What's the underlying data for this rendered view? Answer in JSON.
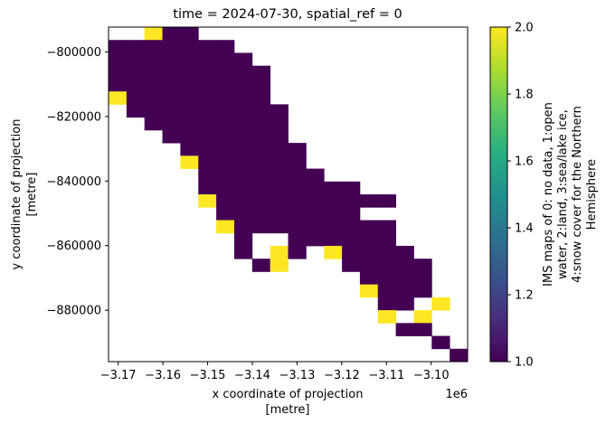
{
  "chart_data": {
    "type": "heatmap",
    "title": "time = 2024-07-30, spatial_ref = 0",
    "xlabel": [
      "x coordinate of projection",
      "[metre]"
    ],
    "ylabel": [
      "y coordinate of projection",
      "[metre]"
    ],
    "x_offset_label": "1e6",
    "xlim": [
      -3172157,
      -3091857
    ],
    "ylim": [
      -895915,
      -792337
    ],
    "x_ticks": [
      -3.17,
      -3.16,
      -3.15,
      -3.14,
      -3.13,
      -3.12,
      -3.11,
      -3.1
    ],
    "x_tick_labels": [
      "−3.17",
      "−3.16",
      "−3.15",
      "−3.14",
      "−3.13",
      "−3.12",
      "−3.11",
      "−3.10"
    ],
    "y_ticks": [
      -800000,
      -820000,
      -840000,
      -860000,
      -880000
    ],
    "y_tick_labels": [
      "−800000",
      "−820000",
      "−840000",
      "−860000",
      "−880000"
    ],
    "x": [
      -3170150,
      -3166135,
      -3162120,
      -3158105,
      -3154090,
      -3150075,
      -3146060,
      -3142045,
      -3138030,
      -3134015,
      -3130000,
      -3125985,
      -3121970,
      -3117955,
      -3113940,
      -3109925,
      -3105910,
      -3101895,
      -3097880,
      -3093865
    ],
    "y": [
      -794330,
      -798314,
      -802298,
      -806282,
      -810266,
      -814250,
      -818234,
      -822218,
      -826202,
      -830186,
      -834170,
      -838154,
      -842138,
      -846122,
      -850106,
      -854090,
      -858074,
      -862058,
      -866042,
      -870026,
      -874010,
      -877994,
      -881978,
      -885962,
      -889946,
      -893930
    ],
    "values": [
      [
        null,
        null,
        2,
        1,
        1,
        null,
        null,
        null,
        null,
        null,
        null,
        null,
        null,
        null,
        null,
        null,
        null,
        null,
        null,
        null
      ],
      [
        1,
        1,
        1,
        1,
        1,
        1,
        1,
        null,
        null,
        null,
        null,
        null,
        null,
        null,
        null,
        null,
        null,
        null,
        null,
        null
      ],
      [
        1,
        1,
        1,
        1,
        1,
        1,
        1,
        1,
        null,
        null,
        null,
        null,
        null,
        null,
        null,
        null,
        null,
        null,
        null,
        null
      ],
      [
        1,
        1,
        1,
        1,
        1,
        1,
        1,
        1,
        1,
        null,
        null,
        null,
        null,
        null,
        null,
        null,
        null,
        null,
        null,
        null
      ],
      [
        1,
        1,
        1,
        1,
        1,
        1,
        1,
        1,
        1,
        null,
        null,
        null,
        null,
        null,
        null,
        null,
        null,
        null,
        null,
        null
      ],
      [
        2,
        1,
        1,
        1,
        1,
        1,
        1,
        1,
        1,
        null,
        null,
        null,
        null,
        null,
        null,
        null,
        null,
        null,
        null,
        null
      ],
      [
        null,
        1,
        1,
        1,
        1,
        1,
        1,
        1,
        1,
        1,
        null,
        null,
        null,
        null,
        null,
        null,
        null,
        null,
        null,
        null
      ],
      [
        null,
        null,
        1,
        1,
        1,
        1,
        1,
        1,
        1,
        1,
        null,
        null,
        null,
        null,
        null,
        null,
        null,
        null,
        null,
        null
      ],
      [
        null,
        null,
        null,
        1,
        1,
        1,
        1,
        1,
        1,
        1,
        null,
        null,
        null,
        null,
        null,
        null,
        null,
        null,
        null,
        null
      ],
      [
        null,
        null,
        null,
        null,
        1,
        1,
        1,
        1,
        1,
        1,
        1,
        null,
        null,
        null,
        null,
        null,
        null,
        null,
        null,
        null
      ],
      [
        null,
        null,
        null,
        null,
        2,
        1,
        1,
        1,
        1,
        1,
        1,
        null,
        null,
        null,
        null,
        null,
        null,
        null,
        null,
        null
      ],
      [
        null,
        null,
        null,
        null,
        null,
        1,
        1,
        1,
        1,
        1,
        1,
        1,
        null,
        null,
        null,
        null,
        null,
        null,
        null,
        null
      ],
      [
        null,
        null,
        null,
        null,
        null,
        1,
        1,
        1,
        1,
        1,
        1,
        1,
        1,
        1,
        null,
        null,
        null,
        null,
        null,
        null
      ],
      [
        null,
        null,
        null,
        null,
        null,
        2,
        1,
        1,
        1,
        1,
        1,
        1,
        1,
        1,
        1,
        1,
        null,
        null,
        null,
        null
      ],
      [
        null,
        null,
        null,
        null,
        null,
        null,
        1,
        1,
        1,
        1,
        1,
        1,
        1,
        1,
        null,
        null,
        null,
        null,
        null,
        null
      ],
      [
        null,
        null,
        null,
        null,
        null,
        null,
        2,
        1,
        1,
        1,
        1,
        1,
        1,
        1,
        1,
        1,
        null,
        null,
        null,
        null
      ],
      [
        null,
        null,
        null,
        null,
        null,
        null,
        null,
        1,
        null,
        null,
        1,
        1,
        1,
        1,
        1,
        1,
        null,
        null,
        null,
        null
      ],
      [
        null,
        null,
        null,
        null,
        null,
        null,
        null,
        1,
        null,
        2,
        1,
        null,
        2,
        1,
        1,
        1,
        1,
        null,
        null,
        null
      ],
      [
        null,
        null,
        null,
        null,
        null,
        null,
        null,
        null,
        1,
        2,
        null,
        null,
        null,
        1,
        1,
        1,
        1,
        1,
        null,
        null
      ],
      [
        null,
        null,
        null,
        null,
        null,
        null,
        null,
        null,
        null,
        null,
        null,
        null,
        null,
        null,
        1,
        1,
        1,
        1,
        null,
        null
      ],
      [
        null,
        null,
        null,
        null,
        null,
        null,
        null,
        null,
        null,
        null,
        null,
        null,
        null,
        null,
        2,
        1,
        1,
        1,
        null,
        null
      ],
      [
        null,
        null,
        null,
        null,
        null,
        null,
        null,
        null,
        null,
        null,
        null,
        null,
        null,
        null,
        null,
        1,
        1,
        null,
        2,
        null
      ],
      [
        null,
        null,
        null,
        null,
        null,
        null,
        null,
        null,
        null,
        null,
        null,
        null,
        null,
        null,
        null,
        2,
        null,
        2,
        null,
        null
      ],
      [
        null,
        null,
        null,
        null,
        null,
        null,
        null,
        null,
        null,
        null,
        null,
        null,
        null,
        null,
        null,
        null,
        1,
        1,
        null,
        null
      ],
      [
        null,
        null,
        null,
        null,
        null,
        null,
        null,
        null,
        null,
        null,
        null,
        null,
        null,
        null,
        null,
        null,
        null,
        null,
        1,
        null
      ],
      [
        null,
        null,
        null,
        null,
        null,
        null,
        null,
        null,
        null,
        null,
        null,
        null,
        null,
        null,
        null,
        null,
        null,
        null,
        null,
        1
      ]
    ],
    "colormap": "viridis",
    "colors": {
      "1": "#440154",
      "2": "#fde725"
    },
    "colorbar": {
      "range": [
        1.0,
        2.0
      ],
      "ticks": [
        1.0,
        1.2,
        1.4,
        1.6,
        1.8,
        2.0
      ],
      "tick_labels": [
        "1.0",
        "1.2",
        "1.4",
        "1.6",
        "1.8",
        "2.0"
      ],
      "label": [
        "IMS maps of 0: no data, 1:open",
        "water, 2:land, 3:sea/lake ice,",
        "4:snow cover for the Northern",
        "Hemisphere"
      ]
    },
    "grid": false,
    "legend": "none"
  }
}
